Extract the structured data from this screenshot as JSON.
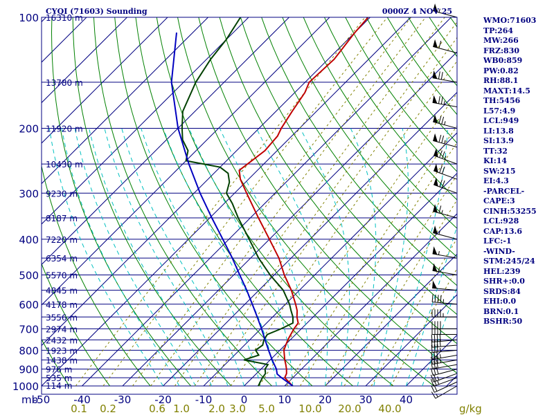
{
  "title_left": "CYQI (71603) Sounding",
  "title_right": "0000Z  4 NOV 25",
  "colors": {
    "axes": "#000080",
    "isobar": "#000080",
    "isotherm": "#000080",
    "dry_adiabat": "#008000",
    "moist_adiabat": "#00c0c0",
    "mixing_ratio": "#808000",
    "temperature": "#c00000",
    "dewpoint": "#004000",
    "parcel": "#0000c0",
    "wind_barb": "#000000"
  },
  "stats": [
    "WMO:71603",
    "TP:264",
    "MW:266",
    "FRZ:830",
    "WB0:859",
    "PW:0.82",
    "RH:88.1",
    "MAXT:14.5",
    "TH:5456",
    "L57:4.9",
    "LCL:949",
    "LI:13.8",
    "SI:13.9",
    "TT:32",
    "KI:14",
    "SW:215",
    "EI:4.3",
    "-PARCEL-",
    "CAPE:3",
    "CINH:53255",
    "LCL:928",
    "CAP:13.6",
    "LFC:-1",
    "-WIND-",
    "STM:245/24",
    "HEL:239",
    "SHR+:0.0",
    "SRDS:84",
    "EHI:0.0",
    "BRN:0.1",
    "BSHR:50"
  ],
  "chart_data": {
    "type": "line",
    "subtype": "skew-t log-p sounding",
    "title": "CYQI (71603) Sounding",
    "time": "0000Z  4 NOV 25",
    "pressure_axis": {
      "unit": "mb",
      "unit_label": "mb",
      "scale": "log",
      "range": [
        1000,
        100
      ],
      "tick_labels": [
        "100",
        "200",
        "300",
        "400",
        "500",
        "600",
        "700",
        "800",
        "900",
        "1000"
      ]
    },
    "temperature_axis": {
      "unit": "C",
      "tick_labels": [
        "-50",
        "-40",
        "-30",
        "-20",
        "-10",
        "0",
        "10",
        "20",
        "30",
        "40"
      ]
    },
    "mixing_ratio_labels": [
      "0.1",
      "0.2",
      "0.6",
      "1.0",
      "2.0",
      "3.0",
      "5.0",
      "10.0",
      "20.0",
      "40.0"
    ],
    "mixing_ratio_unit": "g/kg",
    "height_labels": [
      {
        "p": 100,
        "label": "16310 m"
      },
      {
        "p": 150,
        "label": "13780 m"
      },
      {
        "p": 200,
        "label": "11920 m"
      },
      {
        "p": 250,
        "label": "10430 m"
      },
      {
        "p": 300,
        "label": "9230 m"
      },
      {
        "p": 350,
        "label": "8187 m"
      },
      {
        "p": 400,
        "label": "7220 m"
      },
      {
        "p": 450,
        "label": "6354 m"
      },
      {
        "p": 500,
        "label": "5570 m"
      },
      {
        "p": 550,
        "label": "4845 m"
      },
      {
        "p": 600,
        "label": "4178 m"
      },
      {
        "p": 650,
        "label": "3556 m"
      },
      {
        "p": 700,
        "label": "2974 m"
      },
      {
        "p": 750,
        "label": "2432 m"
      },
      {
        "p": 800,
        "label": "1923 m"
      },
      {
        "p": 850,
        "label": "1438 m"
      },
      {
        "p": 900,
        "label": "976 m"
      },
      {
        "p": 950,
        "label": "535 m"
      },
      {
        "p": 1000,
        "label": "114 m"
      }
    ],
    "series": [
      {
        "key": "temperature",
        "points": [
          [
            1000,
            12.0
          ],
          [
            975,
            10.0
          ],
          [
            950,
            8.0
          ],
          [
            925,
            7.4
          ],
          [
            900,
            6.3
          ],
          [
            875,
            5.0
          ],
          [
            850,
            3.6
          ],
          [
            800,
            1.0
          ],
          [
            775,
            0.2
          ],
          [
            750,
            -0.6
          ],
          [
            725,
            -1.2
          ],
          [
            700,
            -1.8
          ],
          [
            675,
            -2.2
          ],
          [
            650,
            -4.0
          ],
          [
            625,
            -5.5
          ],
          [
            600,
            -7.5
          ],
          [
            550,
            -12.0
          ],
          [
            500,
            -17.5
          ],
          [
            450,
            -23.0
          ],
          [
            400,
            -30.0
          ],
          [
            350,
            -38.0
          ],
          [
            300,
            -47.0
          ],
          [
            275,
            -52.0
          ],
          [
            260,
            -54.5
          ],
          [
            250,
            -54.0
          ],
          [
            230,
            -53.0
          ],
          [
            210,
            -53.5
          ],
          [
            200,
            -54.5
          ],
          [
            180,
            -56.0
          ],
          [
            160,
            -57.5
          ],
          [
            150,
            -59.0
          ],
          [
            130,
            -58.5
          ],
          [
            110,
            -60.0
          ],
          [
            100,
            -60.5
          ]
        ]
      },
      {
        "key": "dewpoint",
        "points": [
          [
            1000,
            3.5
          ],
          [
            975,
            3.0
          ],
          [
            950,
            2.5
          ],
          [
            925,
            2.2
          ],
          [
            900,
            1.0
          ],
          [
            875,
            0.6
          ],
          [
            850,
            -6.5
          ],
          [
            825,
            -4.0
          ],
          [
            800,
            -6.0
          ],
          [
            775,
            -5.5
          ],
          [
            750,
            -6.5
          ],
          [
            725,
            -7.0
          ],
          [
            700,
            -5.0
          ],
          [
            675,
            -3.5
          ],
          [
            650,
            -5.0
          ],
          [
            625,
            -7.0
          ],
          [
            600,
            -9.0
          ],
          [
            550,
            -14.0
          ],
          [
            500,
            -21.0
          ],
          [
            450,
            -28.0
          ],
          [
            400,
            -35.0
          ],
          [
            350,
            -43.0
          ],
          [
            320,
            -48.0
          ],
          [
            300,
            -52.0
          ],
          [
            280,
            -54.0
          ],
          [
            265,
            -56.5
          ],
          [
            255,
            -60.0
          ],
          [
            245,
            -70.0
          ],
          [
            230,
            -72.0
          ],
          [
            215,
            -76.0
          ],
          [
            200,
            -79.0
          ],
          [
            180,
            -83.0
          ],
          [
            150,
            -87.0
          ],
          [
            130,
            -89.0
          ],
          [
            115,
            -90.0
          ],
          [
            100,
            -92.0
          ]
        ]
      },
      {
        "key": "parcel",
        "points": [
          [
            1000,
            12.0
          ],
          [
            950,
            7.2
          ],
          [
            928,
            5.2
          ],
          [
            900,
            3.8
          ],
          [
            850,
            0.5
          ],
          [
            800,
            -2.8
          ],
          [
            750,
            -6.2
          ],
          [
            700,
            -9.8
          ],
          [
            650,
            -13.8
          ],
          [
            600,
            -18.2
          ],
          [
            550,
            -23.0
          ],
          [
            500,
            -28.5
          ],
          [
            450,
            -34.5
          ],
          [
            400,
            -41.5
          ],
          [
            350,
            -49.5
          ],
          [
            300,
            -58.5
          ],
          [
            250,
            -68.5
          ],
          [
            200,
            -80.0
          ],
          [
            150,
            -93.0
          ],
          [
            110,
            -104.0
          ]
        ]
      }
    ],
    "wind_barbs": [
      {
        "p": 1000,
        "dir": 240,
        "spd": 15
      },
      {
        "p": 975,
        "dir": 245,
        "spd": 20
      },
      {
        "p": 950,
        "dir": 250,
        "spd": 25
      },
      {
        "p": 925,
        "dir": 250,
        "spd": 25
      },
      {
        "p": 900,
        "dir": 255,
        "spd": 30
      },
      {
        "p": 875,
        "dir": 260,
        "spd": 30
      },
      {
        "p": 850,
        "dir": 260,
        "spd": 35
      },
      {
        "p": 825,
        "dir": 260,
        "spd": 35
      },
      {
        "p": 800,
        "dir": 265,
        "spd": 35
      },
      {
        "p": 775,
        "dir": 265,
        "spd": 40
      },
      {
        "p": 750,
        "dir": 265,
        "spd": 40
      },
      {
        "p": 725,
        "dir": 270,
        "spd": 40
      },
      {
        "p": 700,
        "dir": 270,
        "spd": 40
      },
      {
        "p": 650,
        "dir": 270,
        "spd": 45
      },
      {
        "p": 600,
        "dir": 275,
        "spd": 45
      },
      {
        "p": 550,
        "dir": 275,
        "spd": 50
      },
      {
        "p": 500,
        "dir": 280,
        "spd": 55
      },
      {
        "p": 450,
        "dir": 280,
        "spd": 55
      },
      {
        "p": 400,
        "dir": 285,
        "spd": 55
      },
      {
        "p": 350,
        "dir": 285,
        "spd": 65
      },
      {
        "p": 300,
        "dir": 290,
        "spd": 70
      },
      {
        "p": 275,
        "dir": 290,
        "spd": 70
      },
      {
        "p": 250,
        "dir": 290,
        "spd": 75
      },
      {
        "p": 225,
        "dir": 285,
        "spd": 75
      },
      {
        "p": 200,
        "dir": 285,
        "spd": 75
      },
      {
        "p": 175,
        "dir": 280,
        "spd": 75
      },
      {
        "p": 150,
        "dir": 280,
        "spd": 70
      },
      {
        "p": 125,
        "dir": 285,
        "spd": 60
      },
      {
        "p": 100,
        "dir": 285,
        "spd": 55
      }
    ]
  }
}
